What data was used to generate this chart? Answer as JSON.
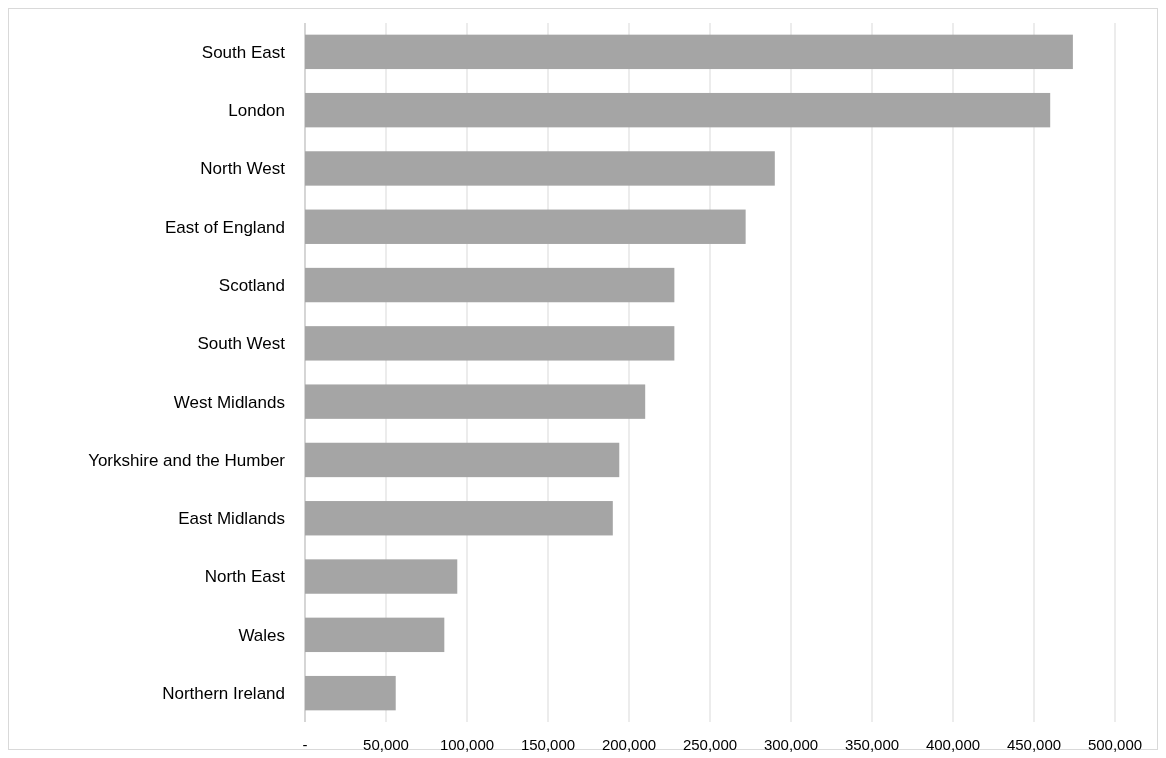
{
  "chart_data": {
    "type": "bar",
    "orientation": "horizontal",
    "categories": [
      "South East",
      "London",
      "North West",
      "East of England",
      "Scotland",
      "South West",
      "West Midlands",
      "Yorkshire and the Humber",
      "East Midlands",
      "North East",
      "Wales",
      "Northern Ireland"
    ],
    "values": [
      474000,
      460000,
      290000,
      272000,
      228000,
      228000,
      210000,
      194000,
      190000,
      94000,
      86000,
      56000
    ],
    "color": "#a5a5a5",
    "xlim": [
      0,
      500000
    ],
    "xticks": [
      {
        "value": 0,
        "label": "-"
      },
      {
        "value": 50000,
        "label": "50,000"
      },
      {
        "value": 100000,
        "label": "100,000"
      },
      {
        "value": 150000,
        "label": "150,000"
      },
      {
        "value": 200000,
        "label": "200,000"
      },
      {
        "value": 250000,
        "label": "250,000"
      },
      {
        "value": 300000,
        "label": "300,000"
      },
      {
        "value": 350000,
        "label": "350,000"
      },
      {
        "value": 400000,
        "label": "400,000"
      },
      {
        "value": 450000,
        "label": "450,000"
      },
      {
        "value": 500000,
        "label": "500,000"
      }
    ],
    "grid": "x"
  }
}
